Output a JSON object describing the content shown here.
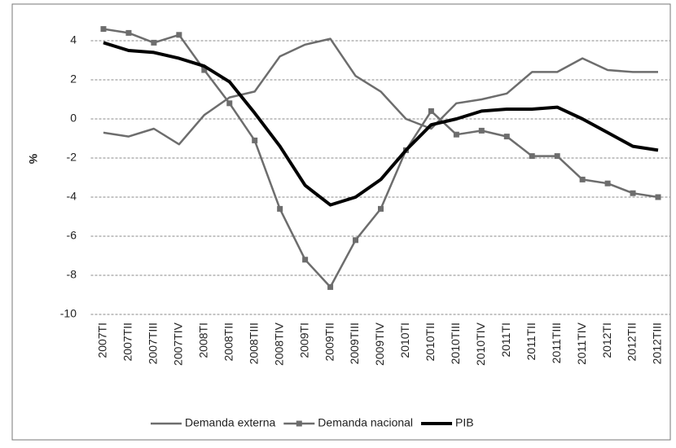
{
  "chart_data": {
    "type": "line",
    "y_label": "%",
    "categories": [
      "2007TI",
      "2007TII",
      "2007TIII",
      "2007TIV",
      "2008TI",
      "2008TII",
      "2008TIII",
      "2008TIV",
      "2009TI",
      "2009TII",
      "2009TIII",
      "2009TIV",
      "2010TI",
      "2010TII",
      "2010TIII",
      "2010TIV",
      "2011TI",
      "2011TII",
      "2011TIII",
      "2011TIV",
      "2012TI",
      "2012TII",
      "2012TIII"
    ],
    "series": [
      {
        "name": "Demanda externa",
        "color": "#6d6d6d",
        "marker": "none",
        "values": [
          -0.7,
          -0.9,
          -0.5,
          -1.3,
          0.2,
          1.1,
          1.4,
          3.2,
          3.8,
          4.1,
          2.2,
          1.4,
          0.0,
          -0.5,
          0.8,
          1.0,
          1.3,
          2.4,
          2.4,
          3.1,
          2.5,
          2.4,
          2.4
        ]
      },
      {
        "name": "Demanda nacional",
        "color": "#6d6d6d",
        "marker": "square",
        "values": [
          4.6,
          4.4,
          3.9,
          4.3,
          2.5,
          0.8,
          -1.1,
          -4.6,
          -7.2,
          -8.6,
          -6.2,
          -4.6,
          -1.6,
          0.4,
          -0.8,
          -0.6,
          -0.9,
          -1.9,
          -1.9,
          -3.1,
          -3.3,
          -3.8,
          -4.0
        ]
      },
      {
        "name": "PIB",
        "color": "#000000",
        "marker": "none",
        "values": [
          3.9,
          3.5,
          3.4,
          3.1,
          2.7,
          1.9,
          0.3,
          -1.4,
          -3.4,
          -4.4,
          -4.0,
          -3.1,
          -1.6,
          -0.3,
          0.0,
          0.4,
          0.5,
          0.5,
          0.6,
          0.0,
          -0.7,
          -1.4,
          -1.6
        ]
      }
    ],
    "ylim": [
      -10,
      5
    ],
    "yticks": [
      4,
      2,
      0,
      -2,
      -4,
      -6,
      -8,
      -10
    ],
    "grid": true,
    "legend": "bottom"
  }
}
